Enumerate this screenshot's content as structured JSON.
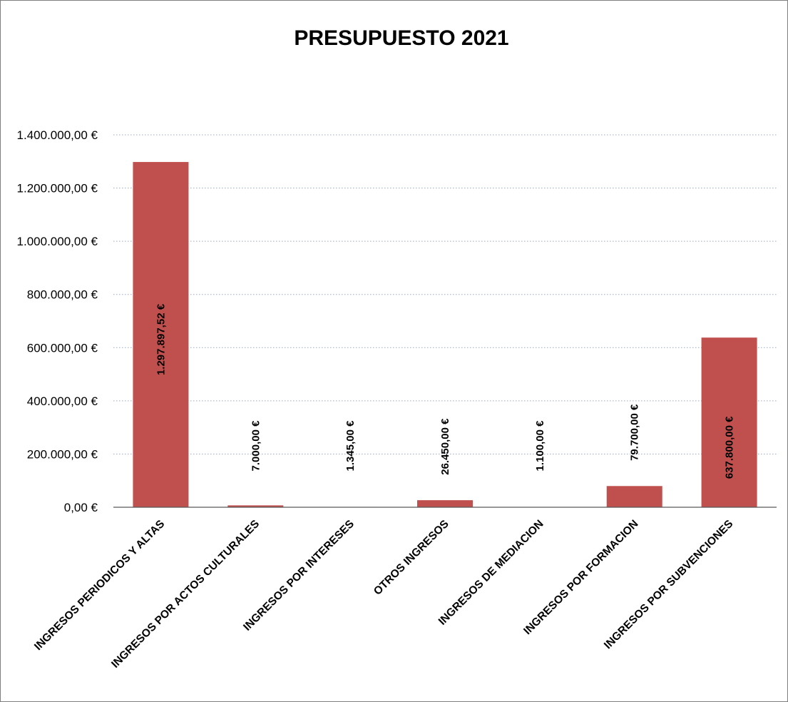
{
  "chart_data": {
    "type": "bar",
    "title": "PRESUPUESTO 2021",
    "categories": [
      "INGRESOS PERIODICOS Y ALTAS",
      "INGRESOS POR ACTOS CULTURALES",
      "INGRESOS POR INTERESES",
      "OTROS INGRESOS",
      "INGRESOS DE MEDIACION",
      "INGRESOS POR FORMACION",
      "INGRESOS POR SUBVENCIONES"
    ],
    "values": [
      1297897.52,
      7000.0,
      1345.0,
      26450.0,
      1100.0,
      79700.0,
      637800.0
    ],
    "value_labels": [
      "1.297.897,52 €",
      "7.000,00 €",
      "1.345,00 €",
      "26.450,00 €",
      "1.100,00 €",
      "79.700,00 €",
      "637.800,00 €"
    ],
    "y_ticks": [
      0,
      200000,
      400000,
      600000,
      800000,
      1000000,
      1200000,
      1400000
    ],
    "y_tick_labels": [
      "0,00 €",
      "200.000,00 €",
      "400.000,00 €",
      "600.000,00 €",
      "800.000,00 €",
      "1.000.000,00 €",
      "1.200.000,00 €",
      "1.400.000,00 €"
    ],
    "ylim": [
      0,
      1400000
    ],
    "xlabel": "",
    "ylabel": "",
    "grid": true,
    "bar_color": "#c0504d"
  }
}
